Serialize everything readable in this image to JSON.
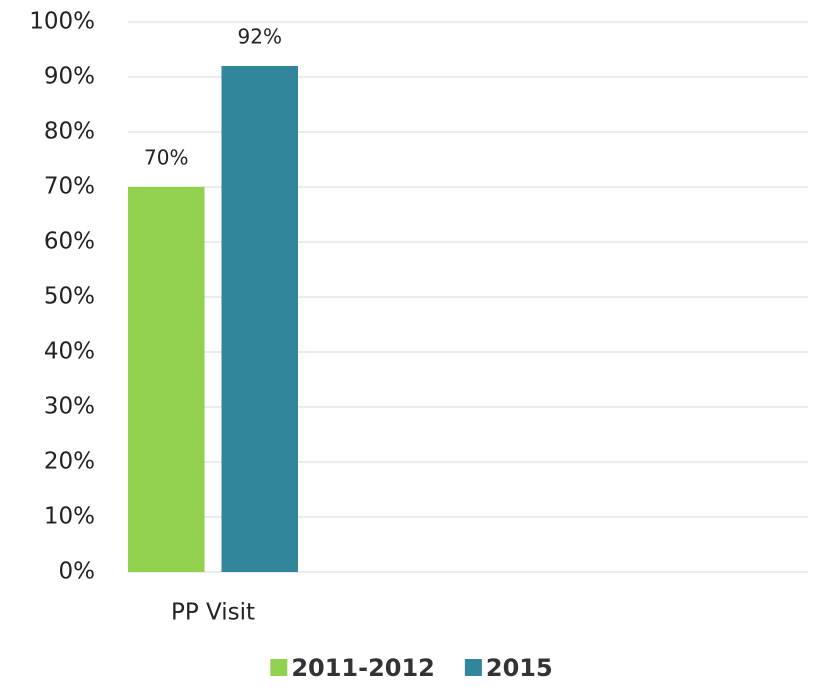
{
  "chart_data": {
    "type": "bar",
    "categories": [
      "PP Visit",
      null,
      null,
      null
    ],
    "series": [
      {
        "name": "2011-2012",
        "color": "#92d050",
        "values": [
          70,
          null,
          null,
          null
        ],
        "value_labels": [
          "70%",
          null,
          null,
          null
        ]
      },
      {
        "name": "2015",
        "color": "#31869b",
        "values": [
          92,
          null,
          null,
          null
        ],
        "value_labels": [
          "92%",
          null,
          null,
          null
        ]
      }
    ],
    "ylim": [
      0,
      100
    ],
    "yticks": [
      {
        "value": 0,
        "label": "0%"
      },
      {
        "value": 10,
        "label": "10%"
      },
      {
        "value": 20,
        "label": "20%"
      },
      {
        "value": 30,
        "label": "30%"
      },
      {
        "value": 40,
        "label": "40%"
      },
      {
        "value": 50,
        "label": "50%"
      },
      {
        "value": 60,
        "label": "60%"
      },
      {
        "value": 70,
        "label": "70%"
      },
      {
        "value": 80,
        "label": "80%"
      },
      {
        "value": 90,
        "label": "90%"
      },
      {
        "value": 100,
        "label": "100%"
      }
    ],
    "grid": true,
    "legend": "bottom"
  }
}
